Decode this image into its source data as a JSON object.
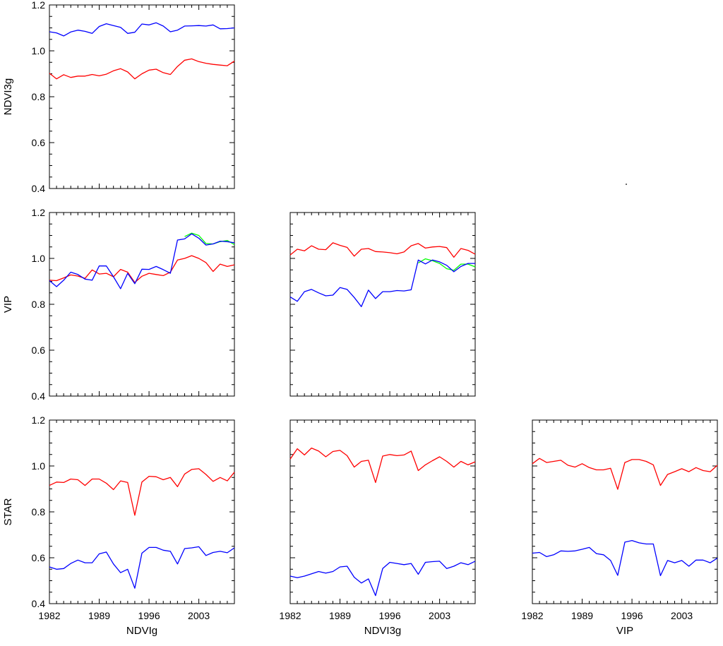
{
  "chart_data": [
    {
      "type": "line",
      "row": 0,
      "col": 0,
      "ylabel": "NDVI3g",
      "xlabel": "",
      "xlim": [
        1982,
        2008
      ],
      "ylim": [
        0.4,
        1.2
      ],
      "yticks": [
        "0.4",
        "0.6",
        "0.8",
        "1.0",
        "1.2"
      ],
      "xticks": [],
      "series": [
        {
          "color": "#0000ff",
          "x": [
            1982,
            1983,
            1984,
            1985,
            1986,
            1987,
            1988,
            1989,
            1990,
            1991,
            1992,
            1993,
            1994,
            1995,
            1996,
            1997,
            1998,
            1999,
            2000,
            2001,
            2002,
            2003,
            2004,
            2005,
            2006,
            2007,
            2008
          ],
          "values": [
            1.083,
            1.078,
            1.065,
            1.082,
            1.09,
            1.085,
            1.076,
            1.106,
            1.118,
            1.11,
            1.102,
            1.076,
            1.081,
            1.117,
            1.113,
            1.122,
            1.108,
            1.083,
            1.09,
            1.108,
            1.109,
            1.11,
            1.108,
            1.113,
            1.096,
            1.097,
            1.1
          ]
        },
        {
          "color": "#ff0000",
          "x": [
            1982,
            1983,
            1984,
            1985,
            1986,
            1987,
            1988,
            1989,
            1990,
            1991,
            1992,
            1993,
            1994,
            1995,
            1996,
            1997,
            1998,
            1999,
            2000,
            2001,
            2002,
            2003,
            2004,
            2005,
            2006,
            2007,
            2008
          ],
          "values": [
            0.902,
            0.878,
            0.896,
            0.884,
            0.89,
            0.89,
            0.897,
            0.891,
            0.898,
            0.913,
            0.922,
            0.908,
            0.878,
            0.9,
            0.916,
            0.92,
            0.905,
            0.897,
            0.932,
            0.959,
            0.965,
            0.953,
            0.946,
            0.941,
            0.938,
            0.935,
            0.955
          ]
        }
      ]
    },
    {
      "type": "line",
      "row": 1,
      "col": 0,
      "ylabel": "VIP",
      "xlabel": "",
      "xlim": [
        1982,
        2008
      ],
      "ylim": [
        0.4,
        1.2
      ],
      "yticks": [
        "0.4",
        "0.6",
        "0.8",
        "1.0",
        "1.2"
      ],
      "xticks": [],
      "series": [
        {
          "color": "#ff0000",
          "x": [
            1982,
            1983,
            1984,
            1985,
            1986,
            1987,
            1988,
            1989,
            1990,
            1991,
            1992,
            1993,
            1994,
            1995,
            1996,
            1997,
            1998,
            1999,
            2000,
            2001,
            2002,
            2003,
            2004,
            2005,
            2006,
            2007,
            2008
          ],
          "values": [
            0.905,
            0.903,
            0.915,
            0.928,
            0.923,
            0.913,
            0.95,
            0.932,
            0.935,
            0.92,
            0.952,
            0.94,
            0.895,
            0.922,
            0.935,
            0.93,
            0.925,
            0.94,
            0.993,
            1.0,
            1.012,
            1.0,
            0.982,
            0.943,
            0.975,
            0.965,
            0.972
          ]
        },
        {
          "color": "#00ff00",
          "x": [
            2001,
            2002,
            2003,
            2004,
            2005,
            2006,
            2007,
            2008
          ],
          "values": [
            1.095,
            1.11,
            1.1,
            1.065,
            1.063,
            1.073,
            1.078,
            1.06
          ]
        },
        {
          "color": "#0000ff",
          "x": [
            1982,
            1983,
            1984,
            1985,
            1986,
            1987,
            1988,
            1989,
            1990,
            1991,
            1992,
            1993,
            1994,
            1995,
            1996,
            1997,
            1998,
            1999,
            2000,
            2001,
            2002,
            2003,
            2004,
            2005,
            2006,
            2007,
            2008
          ],
          "values": [
            0.903,
            0.877,
            0.905,
            0.94,
            0.93,
            0.91,
            0.905,
            0.967,
            0.967,
            0.92,
            0.868,
            0.935,
            0.89,
            0.953,
            0.952,
            0.965,
            0.951,
            0.935,
            1.08,
            1.085,
            1.107,
            1.088,
            1.058,
            1.063,
            1.075,
            1.073,
            1.068
          ]
        }
      ]
    },
    {
      "type": "line",
      "row": 1,
      "col": 1,
      "ylabel": "",
      "xlabel": "",
      "xlim": [
        1982,
        2008
      ],
      "ylim": [
        0.4,
        1.2
      ],
      "yticks": [],
      "xticks": [],
      "series": [
        {
          "color": "#ff0000",
          "x": [
            1982,
            1983,
            1984,
            1985,
            1986,
            1987,
            1988,
            1989,
            1990,
            1991,
            1992,
            1993,
            1994,
            1995,
            1996,
            1997,
            1998,
            1999,
            2000,
            2001,
            2002,
            2003,
            2004,
            2005,
            2006,
            2007,
            2008
          ],
          "values": [
            1.015,
            1.04,
            1.033,
            1.055,
            1.04,
            1.038,
            1.068,
            1.057,
            1.048,
            1.01,
            1.04,
            1.043,
            1.03,
            1.028,
            1.025,
            1.02,
            1.028,
            1.055,
            1.065,
            1.045,
            1.05,
            1.052,
            1.047,
            1.005,
            1.043,
            1.035,
            1.018
          ]
        },
        {
          "color": "#00ff00",
          "x": [
            2000,
            2001,
            2002,
            2003,
            2004,
            2005,
            2006,
            2007,
            2008
          ],
          "values": [
            0.98,
            0.998,
            0.99,
            0.978,
            0.955,
            0.948,
            0.975,
            0.975,
            0.963
          ]
        },
        {
          "color": "#0000ff",
          "x": [
            1982,
            1983,
            1984,
            1985,
            1986,
            1987,
            1988,
            1989,
            1990,
            1991,
            1992,
            1993,
            1994,
            1995,
            1996,
            1997,
            1998,
            1999,
            2000,
            2001,
            2002,
            2003,
            2004,
            2005,
            2006,
            2007,
            2008
          ],
          "values": [
            0.832,
            0.813,
            0.855,
            0.865,
            0.85,
            0.837,
            0.84,
            0.873,
            0.865,
            0.83,
            0.79,
            0.862,
            0.825,
            0.855,
            0.855,
            0.86,
            0.858,
            0.863,
            0.993,
            0.976,
            0.993,
            0.985,
            0.97,
            0.942,
            0.965,
            0.978,
            0.978
          ]
        }
      ]
    },
    {
      "type": "line",
      "row": 2,
      "col": 0,
      "ylabel": "STAR",
      "xlabel": "NDVIg",
      "xlim": [
        1982,
        2008
      ],
      "ylim": [
        0.4,
        1.2
      ],
      "yticks": [
        "0.4",
        "0.6",
        "0.8",
        "1.0",
        "1.2"
      ],
      "xticks": [
        "1982",
        "1989",
        "1996",
        "2003"
      ],
      "series": [
        {
          "color": "#ff0000",
          "x": [
            1982,
            1983,
            1984,
            1985,
            1986,
            1987,
            1988,
            1989,
            1990,
            1991,
            1992,
            1993,
            1994,
            1995,
            1996,
            1997,
            1998,
            1999,
            2000,
            2001,
            2002,
            2003,
            2004,
            2005,
            2006,
            2007,
            2008
          ],
          "values": [
            0.915,
            0.93,
            0.928,
            0.943,
            0.94,
            0.915,
            0.943,
            0.943,
            0.925,
            0.897,
            0.935,
            0.928,
            0.785,
            0.93,
            0.955,
            0.953,
            0.94,
            0.95,
            0.91,
            0.965,
            0.985,
            0.988,
            0.963,
            0.933,
            0.95,
            0.935,
            0.973
          ]
        },
        {
          "color": "#0000ff",
          "x": [
            1982,
            1983,
            1984,
            1985,
            1986,
            1987,
            1988,
            1989,
            1990,
            1991,
            1992,
            1993,
            1994,
            1995,
            1996,
            1997,
            1998,
            1999,
            2000,
            2001,
            2002,
            2003,
            2004,
            2005,
            2006,
            2007,
            2008
          ],
          "values": [
            0.56,
            0.55,
            0.553,
            0.575,
            0.59,
            0.578,
            0.578,
            0.617,
            0.625,
            0.573,
            0.535,
            0.55,
            0.467,
            0.62,
            0.645,
            0.645,
            0.633,
            0.628,
            0.573,
            0.64,
            0.643,
            0.648,
            0.61,
            0.623,
            0.628,
            0.622,
            0.643
          ]
        }
      ]
    },
    {
      "type": "line",
      "row": 2,
      "col": 1,
      "ylabel": "",
      "xlabel": "NDVI3g",
      "xlim": [
        1982,
        2008
      ],
      "ylim": [
        0.4,
        1.2
      ],
      "yticks": [],
      "xticks": [
        "1982",
        "1989",
        "1996",
        "2003"
      ],
      "series": [
        {
          "color": "#ff0000",
          "x": [
            1982,
            1983,
            1984,
            1985,
            1986,
            1987,
            1988,
            1989,
            1990,
            1991,
            1992,
            1993,
            1994,
            1995,
            1996,
            1997,
            1998,
            1999,
            2000,
            2001,
            2002,
            2003,
            2004,
            2005,
            2006,
            2007,
            2008
          ],
          "values": [
            1.03,
            1.075,
            1.048,
            1.078,
            1.065,
            1.04,
            1.063,
            1.068,
            1.045,
            0.995,
            1.02,
            1.025,
            0.928,
            1.043,
            1.05,
            1.045,
            1.048,
            1.065,
            0.98,
            1.005,
            1.023,
            1.04,
            1.02,
            0.995,
            1.02,
            1.005,
            1.018
          ]
        },
        {
          "color": "#0000ff",
          "x": [
            1982,
            1983,
            1984,
            1985,
            1986,
            1987,
            1988,
            1989,
            1990,
            1991,
            1992,
            1993,
            1994,
            1995,
            1996,
            1997,
            1998,
            1999,
            2000,
            2001,
            2002,
            2003,
            2004,
            2005,
            2006,
            2007,
            2008
          ],
          "values": [
            0.52,
            0.513,
            0.52,
            0.53,
            0.54,
            0.533,
            0.54,
            0.56,
            0.563,
            0.515,
            0.49,
            0.508,
            0.435,
            0.553,
            0.58,
            0.575,
            0.57,
            0.575,
            0.528,
            0.58,
            0.583,
            0.585,
            0.553,
            0.563,
            0.578,
            0.57,
            0.585
          ]
        }
      ]
    },
    {
      "type": "line",
      "row": 2,
      "col": 2,
      "ylabel": "",
      "xlabel": "VIP",
      "xlim": [
        1982,
        2008
      ],
      "ylim": [
        0.4,
        1.2
      ],
      "yticks": [],
      "xticks": [
        "1982",
        "1989",
        "1996",
        "2003"
      ],
      "series": [
        {
          "color": "#ff0000",
          "x": [
            1982,
            1983,
            1984,
            1985,
            1986,
            1987,
            1988,
            1989,
            1990,
            1991,
            1992,
            1993,
            1994,
            1995,
            1996,
            1997,
            1998,
            1999,
            2000,
            2001,
            2002,
            2003,
            2004,
            2005,
            2006,
            2007,
            2008
          ],
          "values": [
            1.01,
            1.033,
            1.015,
            1.02,
            1.025,
            1.003,
            0.995,
            1.01,
            0.993,
            0.983,
            0.983,
            0.99,
            0.898,
            1.015,
            1.028,
            1.028,
            1.02,
            1.005,
            0.915,
            0.963,
            0.975,
            0.988,
            0.975,
            0.993,
            0.98,
            0.975,
            1.003
          ]
        },
        {
          "color": "#0000ff",
          "x": [
            1982,
            1983,
            1984,
            1985,
            1986,
            1987,
            1988,
            1989,
            1990,
            1991,
            1992,
            1993,
            1994,
            1995,
            1996,
            1997,
            1998,
            1999,
            2000,
            2001,
            2002,
            2003,
            2004,
            2005,
            2006,
            2007,
            2008
          ],
          "values": [
            0.62,
            0.623,
            0.605,
            0.613,
            0.63,
            0.628,
            0.63,
            0.637,
            0.645,
            0.618,
            0.613,
            0.588,
            0.523,
            0.668,
            0.675,
            0.665,
            0.66,
            0.66,
            0.522,
            0.588,
            0.578,
            0.588,
            0.563,
            0.59,
            0.59,
            0.578,
            0.598
          ]
        }
      ]
    }
  ]
}
